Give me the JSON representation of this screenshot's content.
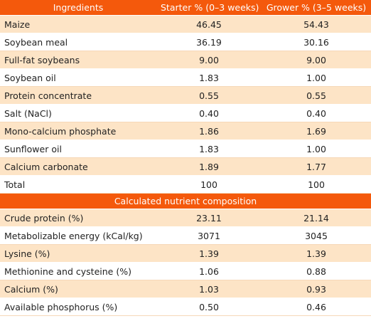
{
  "table": {
    "header": [
      "Ingredients",
      "Starter % (0–3 weeks)",
      "Grower % (3–5 weeks)"
    ],
    "rows": [
      [
        "Maize",
        "46.45",
        "54.43"
      ],
      [
        "Soybean meal",
        "36.19",
        "30.16"
      ],
      [
        "Full-fat soybeans",
        "9.00",
        "9.00"
      ],
      [
        "Soybean oil",
        "1.83",
        "1.00"
      ],
      [
        "Protein concentrate",
        "0.55",
        "0.55"
      ],
      [
        "Salt (NaCl)",
        "0.40",
        "0.40"
      ],
      [
        "Mono-calcium phosphate",
        "1.86",
        "1.69"
      ],
      [
        "Sunflower oil",
        "1.83",
        "1.00"
      ],
      [
        "Calcium carbonate",
        "1.89",
        "1.77"
      ],
      [
        "Total",
        "100",
        "100"
      ]
    ],
    "section_header": "Calculated nutrient composition",
    "section_rows": [
      [
        "Crude protein (%)",
        "23.11",
        "21.14"
      ],
      [
        "Metabolizable energy (kCal/kg)",
        "3071",
        "3045"
      ],
      [
        "Lysine (%)",
        "1.39",
        "1.39"
      ],
      [
        "Methionine and cysteine (%)",
        "1.06",
        "0.88"
      ],
      [
        "Calcium (%)",
        "1.03",
        "0.93"
      ],
      [
        "Available phosphorus (%)",
        "0.50",
        "0.46"
      ]
    ]
  }
}
